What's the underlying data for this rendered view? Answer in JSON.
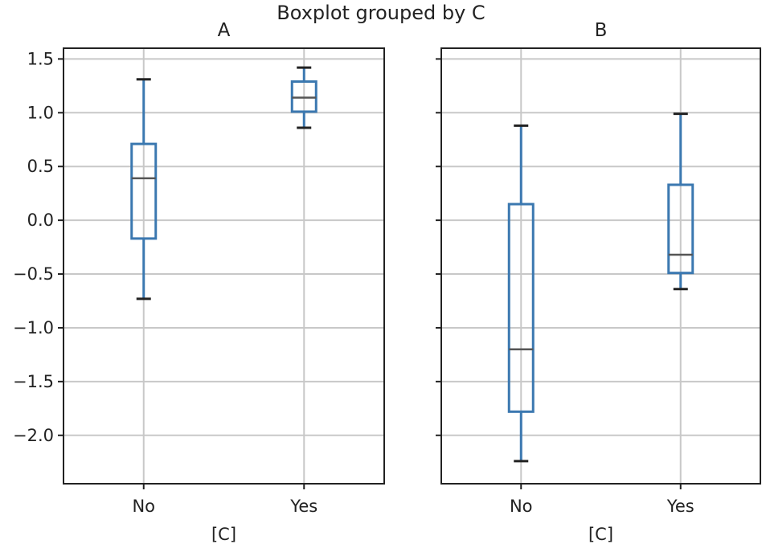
{
  "chart_data": {
    "type": "box",
    "title": "Boxplot grouped by C",
    "grid": true,
    "sharey": true,
    "ylim": [
      -2.45,
      1.6
    ],
    "yticks": [
      -2.0,
      -1.5,
      -1.0,
      -0.5,
      0.0,
      0.5,
      1.0,
      1.5
    ],
    "ytick_labels": [
      "−2.0",
      "−1.5",
      "−1.0",
      "−0.5",
      "0.0",
      "0.5",
      "1.0",
      "1.5"
    ],
    "panels": [
      {
        "title": "A",
        "xlabel": "[C]",
        "categories": [
          "No",
          "Yes"
        ],
        "boxes": [
          {
            "category": "No",
            "whisker_low": -0.73,
            "q1": -0.17,
            "median": 0.39,
            "q3": 0.71,
            "whisker_high": 1.31
          },
          {
            "category": "Yes",
            "whisker_low": 0.86,
            "q1": 1.01,
            "median": 1.14,
            "q3": 1.29,
            "whisker_high": 1.42
          }
        ]
      },
      {
        "title": "B",
        "xlabel": "[C]",
        "categories": [
          "No",
          "Yes"
        ],
        "boxes": [
          {
            "category": "No",
            "whisker_low": -2.24,
            "q1": -1.78,
            "median": -1.2,
            "q3": 0.15,
            "whisker_high": 0.88
          },
          {
            "category": "Yes",
            "whisker_low": -0.64,
            "q1": -0.49,
            "median": -0.32,
            "q3": 0.33,
            "whisker_high": 0.99
          }
        ]
      }
    ],
    "colors": {
      "box": "#3b78b0",
      "median": "#555555",
      "cap": "#222222",
      "grid": "#c8c8c8",
      "axes": "#222222"
    }
  }
}
